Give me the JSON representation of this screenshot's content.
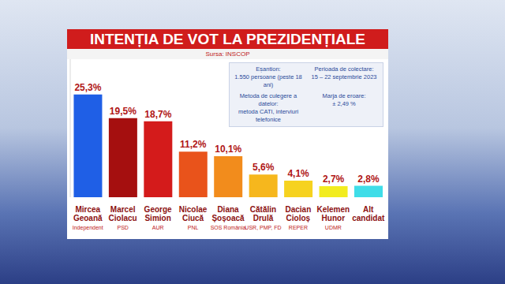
{
  "chart_data": {
    "type": "bar",
    "title": "INTENȚIA DE VOT LA PREZIDENȚIALE",
    "subtitle": "Sursa: INSCOP",
    "categories": [
      "Mircea Geoană",
      "Marcel Ciolacu",
      "George Simion",
      "Nicolae Ciucă",
      "Diana Șoșoacă",
      "Cătălin Drulă",
      "Dacian Cioloș",
      "Kelemen Hunor",
      "Alt candidat"
    ],
    "parties": [
      "Independent",
      "PSD",
      "AUR",
      "PNL",
      "SOS România",
      "USR, PMP, FD",
      "REPER",
      "UDMR",
      null
    ],
    "values": [
      25.3,
      19.5,
      18.7,
      11.2,
      10.1,
      5.6,
      4.1,
      2.7,
      2.8
    ],
    "value_labels": [
      "25,3%",
      "19,5%",
      "18,7%",
      "11,2%",
      "10,1%",
      "5,6%",
      "4,1%",
      "2,7%",
      "2,8%"
    ],
    "colors": [
      "#1f5fe6",
      "#a50f0f",
      "#d41b1b",
      "#e9531b",
      "#f28c1c",
      "#f6b71d",
      "#f6d21f",
      "#f2ec1f",
      "#3fdde8"
    ],
    "ylim": [
      0,
      34
    ],
    "data_labels": true,
    "tick_labels": "x",
    "grid": false,
    "annotations": [
      {
        "label": "Eșantion:",
        "text": "1.550 persoane (peste 18 ani)"
      },
      {
        "label": "Perioada de colectare:",
        "text": "15 – 22 septembrie 2023"
      },
      {
        "label": "Metoda de culegere a datelor:",
        "text": "metoda CATI, interviuri telefonice"
      },
      {
        "label": "Marja de eroare:",
        "text": "± 2,49 %"
      }
    ]
  }
}
